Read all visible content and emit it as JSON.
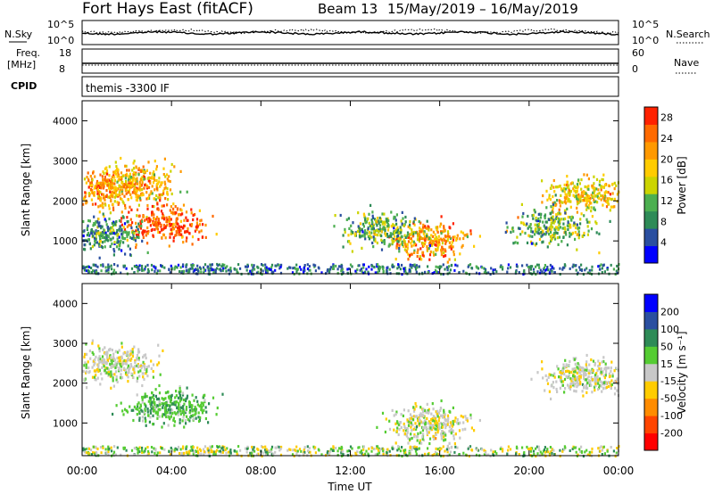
{
  "header": {
    "title": "Fort Hays East (fitACF)",
    "beam": "Beam 13",
    "dates": "15/May/2019 – 16/May/2019"
  },
  "strip1": {
    "left_label": "N.Sky",
    "right_label": "N.Search",
    "left_ticks": [
      "10^5",
      "10^0"
    ],
    "right_ticks": [
      "10^5",
      "10^0"
    ]
  },
  "strip2": {
    "left_label_1": "Freq.",
    "left_label_2": "[MHz]",
    "right_label": "Nave",
    "left_ticks": [
      "18",
      "8"
    ],
    "right_ticks": [
      "60",
      "0"
    ]
  },
  "strip3": {
    "left_label": "CPID",
    "text": "themis -3300 IF"
  },
  "colors": {
    "power_scale": [
      "#0000ff",
      "#2a4fa0",
      "#2e8b57",
      "#4caf50",
      "#ccd400",
      "#ffcc00",
      "#ff9900",
      "#ff6a00",
      "#ff2200"
    ],
    "velocity_scale": [
      "#ff0000",
      "#ff4500",
      "#ff8c00",
      "#ffcc00",
      "#c8c8c8",
      "#55cc33",
      "#2e8b57",
      "#2a4fa0",
      "#0000ff"
    ]
  },
  "chart_data": [
    {
      "type": "heatmap",
      "title": "",
      "ylabel": "Slant Range [km]",
      "xlabel": "",
      "y_ticks": [
        "1000",
        "2000",
        "3000",
        "4000"
      ],
      "ylim": [
        180,
        4500
      ],
      "colorbar_label": "Power [dB]",
      "colorbar_ticks": [
        "4",
        "8",
        "12",
        "16",
        "20",
        "24",
        "28"
      ],
      "clim": [
        0,
        30
      ],
      "blobs": [
        {
          "t": 1.1,
          "r": 2300,
          "power": 22
        },
        {
          "t": 2.4,
          "r": 2500,
          "power": 20
        },
        {
          "t": 3.7,
          "r": 1450,
          "power": 26
        },
        {
          "t": 1.0,
          "r": 1200,
          "power": 10
        },
        {
          "t": 15.5,
          "r": 1050,
          "power": 22
        },
        {
          "t": 13.5,
          "r": 1300,
          "power": 12
        },
        {
          "t": 22.5,
          "r": 2200,
          "power": 18
        },
        {
          "t": 21.0,
          "r": 1400,
          "power": 12
        }
      ]
    },
    {
      "type": "heatmap",
      "title": "",
      "ylabel": "Slant Range [km]",
      "xlabel": "Time UT",
      "x_ticks": [
        "00:00",
        "04:00",
        "08:00",
        "12:00",
        "16:00",
        "20:00",
        "00:00"
      ],
      "xlim": [
        0,
        24
      ],
      "y_ticks": [
        "1000",
        "2000",
        "3000",
        "4000"
      ],
      "ylim": [
        180,
        4500
      ],
      "colorbar_label": "Velocity [m s⁻¹]",
      "colorbar_ticks": [
        "200",
        "100",
        "50",
        "15",
        "-15",
        "-50",
        "-100",
        "-200"
      ],
      "clim": [
        -250,
        250
      ],
      "blobs": [
        {
          "t": 3.8,
          "r": 1450,
          "velocity": 40
        },
        {
          "t": 1.5,
          "r": 2500,
          "velocity": 0
        },
        {
          "t": 15.5,
          "r": 1000,
          "velocity": 0
        },
        {
          "t": 22.5,
          "r": 2200,
          "velocity": 0
        }
      ]
    }
  ]
}
